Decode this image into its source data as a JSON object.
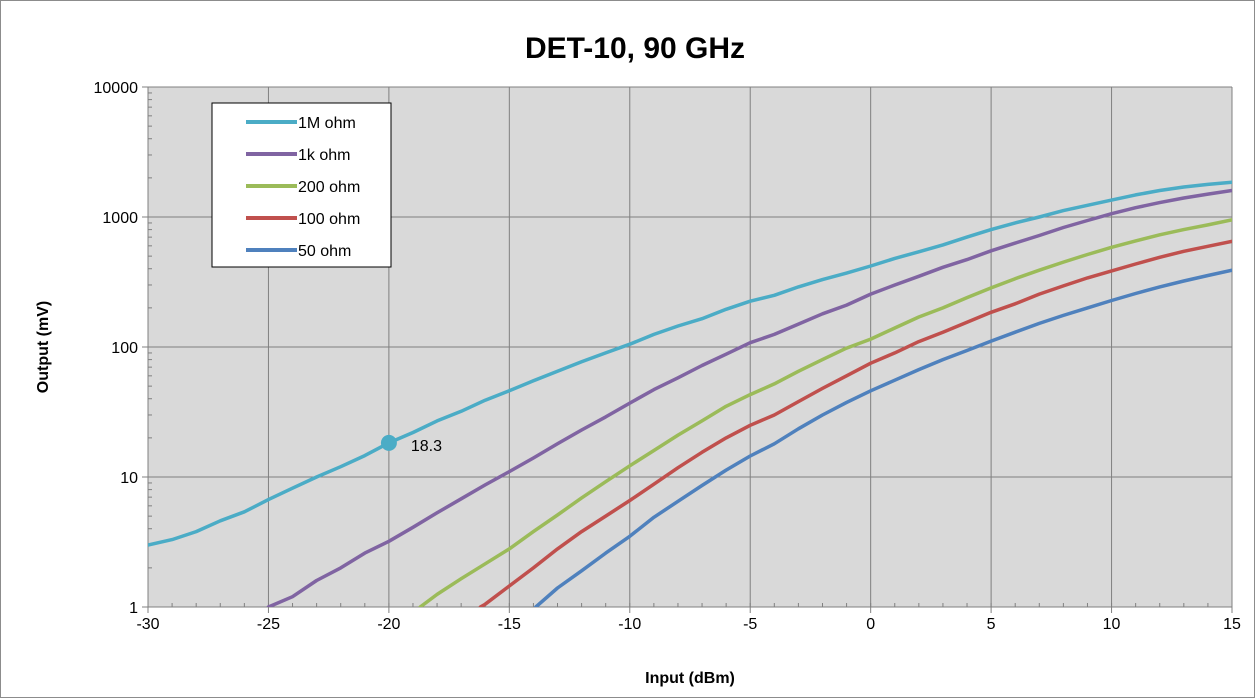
{
  "chart_data": {
    "type": "line",
    "title": "DET-10, 90 GHz",
    "xlabel": "Input (dBm)",
    "ylabel": "Output (mV)",
    "xlim": [
      -30,
      15
    ],
    "ylim": [
      1,
      10000
    ],
    "yscale": "log",
    "grid": true,
    "plot_background": "#d9d9d9",
    "legend_position": "top-left",
    "x_ticks": [
      "-30",
      "-25",
      "-20",
      "-15",
      "-10",
      "-5",
      "0",
      "5",
      "10",
      "15"
    ],
    "y_ticks": [
      "1",
      "10",
      "100",
      "1000",
      "10000"
    ],
    "series": [
      {
        "name": "1M ohm",
        "color": "#4bacc6",
        "x": [
          -30,
          -29,
          -28,
          -27,
          -26,
          -25,
          -24,
          -23,
          -22,
          -21,
          -20,
          -19,
          -18,
          -17,
          -16,
          -15,
          -14,
          -13,
          -12,
          -11,
          -10,
          -9,
          -8,
          -7,
          -6,
          -5,
          -4,
          -3,
          -2,
          -1,
          0,
          1,
          2,
          3,
          4,
          5,
          6,
          7,
          8,
          9,
          10,
          11,
          12,
          13,
          14,
          15
        ],
        "y": [
          3.0,
          3.3,
          3.8,
          4.6,
          5.4,
          6.7,
          8.2,
          10,
          12,
          14.6,
          18.3,
          22,
          27,
          32,
          39,
          46,
          55,
          65,
          77,
          90,
          105,
          125,
          145,
          165,
          195,
          225,
          250,
          290,
          330,
          370,
          420,
          480,
          540,
          610,
          700,
          800,
          900,
          1000,
          1120,
          1230,
          1350,
          1480,
          1600,
          1700,
          1780,
          1850
        ]
      },
      {
        "name": "1k ohm",
        "color": "#8064a2",
        "x": [
          -25,
          -24,
          -23,
          -22,
          -21,
          -20,
          -19,
          -18,
          -17,
          -16,
          -15,
          -14,
          -13,
          -12,
          -11,
          -10,
          -9,
          -8,
          -7,
          -6,
          -5,
          -4,
          -3,
          -2,
          -1,
          0,
          1,
          2,
          3,
          4,
          5,
          6,
          7,
          8,
          9,
          10,
          11,
          12,
          13,
          14,
          15
        ],
        "y": [
          1.0,
          1.2,
          1.6,
          2.0,
          2.6,
          3.2,
          4.1,
          5.3,
          6.8,
          8.7,
          11,
          14,
          18,
          23,
          29,
          37,
          47,
          58,
          72,
          88,
          108,
          125,
          150,
          180,
          210,
          255,
          300,
          350,
          410,
          470,
          550,
          630,
          720,
          830,
          940,
          1060,
          1180,
          1290,
          1400,
          1500,
          1600
        ]
      },
      {
        "name": "200 ohm",
        "color": "#9bbb59",
        "x": [
          -18.7,
          -18,
          -17,
          -16,
          -15,
          -14,
          -13,
          -12,
          -11,
          -10,
          -9,
          -8,
          -7,
          -6,
          -5,
          -4,
          -3,
          -2,
          -1,
          0,
          1,
          2,
          3,
          4,
          5,
          6,
          7,
          8,
          9,
          10,
          11,
          12,
          13,
          14,
          15
        ],
        "y": [
          1.0,
          1.25,
          1.65,
          2.15,
          2.8,
          3.8,
          5.1,
          6.9,
          9.2,
          12.2,
          16,
          21,
          27,
          35,
          43,
          52,
          65,
          80,
          98,
          115,
          140,
          170,
          200,
          240,
          285,
          335,
          390,
          450,
          515,
          585,
          655,
          730,
          800,
          870,
          950
        ]
      },
      {
        "name": "100 ohm",
        "color": "#c0504d",
        "x": [
          -16.2,
          -16,
          -15,
          -14,
          -13,
          -12,
          -11,
          -10,
          -9,
          -8,
          -7,
          -6,
          -5,
          -4,
          -3,
          -2,
          -1,
          0,
          1,
          2,
          3,
          4,
          5,
          6,
          7,
          8,
          9,
          10,
          11,
          12,
          13,
          14,
          15
        ],
        "y": [
          1.0,
          1.05,
          1.45,
          2.0,
          2.8,
          3.8,
          5.0,
          6.6,
          8.8,
          11.8,
          15.5,
          20,
          25,
          30,
          38,
          48,
          60,
          75,
          90,
          110,
          130,
          155,
          185,
          215,
          255,
          295,
          340,
          385,
          435,
          490,
          545,
          595,
          650
        ]
      },
      {
        "name": "50 ohm",
        "color": "#4f81bd",
        "x": [
          -13.9,
          -13,
          -12,
          -11,
          -10,
          -9,
          -8,
          -7,
          -6,
          -5,
          -4,
          -3,
          -2,
          -1,
          0,
          1,
          2,
          3,
          4,
          5,
          6,
          7,
          8,
          9,
          10,
          11,
          12,
          13,
          14,
          15
        ],
        "y": [
          1.0,
          1.4,
          1.9,
          2.6,
          3.5,
          4.9,
          6.5,
          8.6,
          11.3,
          14.5,
          18,
          23.5,
          30,
          37.5,
          46,
          55.5,
          67,
          80,
          94,
          111,
          130,
          152,
          175,
          200,
          228,
          258,
          290,
          322,
          355,
          390
        ]
      }
    ],
    "annotations": [
      {
        "series": "1M ohm",
        "x": -20,
        "y": 18.3,
        "label": "18.3"
      }
    ]
  }
}
